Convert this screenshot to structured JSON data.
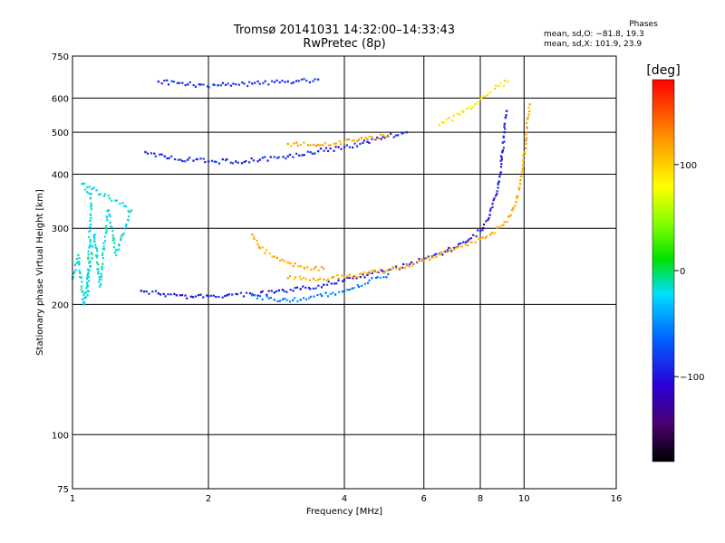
{
  "header": {
    "title_line1": "Tromsø 20141031 14:32:00–14:33:43",
    "title_line2": "RwPretec (8p)",
    "phase_title": "Phases",
    "phase_o": "mean, sd,O: −81.8, 19.3",
    "phase_x": "mean, sd,X: 101.9, 23.9"
  },
  "chart_data": {
    "type": "scatter",
    "title": "Tromsø 20141031 14:32:00–14:33:43",
    "subtitle": "RwPretec (8p)",
    "xlabel": "Frequency [MHz]",
    "ylabel": "Stationary phase Virtual Height [km]",
    "x_scale": "log",
    "y_scale": "log",
    "xlim": [
      1,
      16
    ],
    "ylim": [
      75,
      750
    ],
    "x_ticks": [
      1,
      2,
      4,
      6,
      8,
      10,
      16
    ],
    "x_tick_labels": [
      "1",
      "2",
      "4",
      "6",
      "8",
      "10",
      "16"
    ],
    "y_ticks": [
      75,
      100,
      200,
      300,
      400,
      500,
      600,
      750
    ],
    "y_tick_labels": [
      "75",
      "100",
      "200",
      "300",
      "400",
      "500",
      "600",
      "750"
    ],
    "grid": true,
    "colorbar": {
      "label": "[deg]",
      "range": [
        -180,
        180
      ],
      "ticks": [
        -100,
        0,
        100
      ],
      "tick_labels": [
        "−100",
        "0",
        "100"
      ]
    },
    "series": [
      {
        "points": [
          [
            1.42,
            215
          ],
          [
            1.55,
            212
          ],
          [
            1.7,
            210
          ],
          [
            1.85,
            208
          ],
          [
            2.0,
            209
          ],
          [
            2.2,
            210
          ],
          [
            2.5,
            211
          ],
          [
            2.8,
            213
          ],
          [
            3.2,
            217
          ],
          [
            3.6,
            222
          ],
          [
            4.0,
            228
          ],
          [
            4.5,
            234
          ],
          [
            5.0,
            240
          ],
          [
            5.5,
            247
          ],
          [
            6.0,
            255
          ],
          [
            6.5,
            262
          ],
          [
            7.0,
            270
          ],
          [
            7.5,
            280
          ],
          [
            8.0,
            296
          ],
          [
            8.4,
            322
          ],
          [
            8.7,
            360
          ],
          [
            8.85,
            400
          ],
          [
            8.95,
            450
          ],
          [
            9.05,
            500
          ],
          [
            9.15,
            560
          ]
        ],
        "phase": -95
      },
      {
        "points": [
          [
            3.0,
            230
          ],
          [
            3.5,
            228
          ],
          [
            4.0,
            232
          ],
          [
            4.5,
            236
          ],
          [
            5.0,
            240
          ],
          [
            5.5,
            246
          ],
          [
            6.0,
            253
          ],
          [
            6.5,
            261
          ],
          [
            7.0,
            268
          ],
          [
            7.5,
            274
          ],
          [
            8.0,
            283
          ],
          [
            8.5,
            293
          ],
          [
            9.0,
            305
          ],
          [
            9.3,
            320
          ],
          [
            9.6,
            345
          ],
          [
            9.8,
            380
          ],
          [
            9.95,
            420
          ],
          [
            10.1,
            480
          ],
          [
            10.2,
            540
          ],
          [
            10.3,
            580
          ]
        ],
        "phase": 115
      },
      {
        "points": [
          [
            1.45,
            450
          ],
          [
            1.6,
            440
          ],
          [
            1.8,
            432
          ],
          [
            2.0,
            428
          ],
          [
            2.3,
            428
          ],
          [
            2.6,
            432
          ],
          [
            3.0,
            440
          ],
          [
            3.5,
            452
          ],
          [
            4.0,
            462
          ],
          [
            4.5,
            475
          ],
          [
            5.0,
            490
          ],
          [
            5.5,
            500
          ]
        ],
        "phase": -90
      },
      {
        "points": [
          [
            3.0,
            470
          ],
          [
            3.5,
            468
          ],
          [
            4.0,
            474
          ],
          [
            4.5,
            482
          ],
          [
            5.0,
            492
          ]
        ],
        "phase": 120
      },
      {
        "points": [
          [
            1.55,
            655
          ],
          [
            1.8,
            645
          ],
          [
            2.1,
            642
          ],
          [
            2.5,
            648
          ],
          [
            3.0,
            655
          ],
          [
            3.5,
            662
          ]
        ],
        "phase": -85
      },
      {
        "points": [
          [
            6.5,
            520
          ],
          [
            7.2,
            550
          ],
          [
            7.8,
            580
          ],
          [
            8.3,
            610
          ],
          [
            8.8,
            640
          ],
          [
            9.2,
            655
          ]
        ],
        "phase": 90
      },
      {
        "points": [
          [
            1.0,
            230
          ],
          [
            1.03,
            260
          ],
          [
            1.06,
            200
          ],
          [
            1.09,
            240
          ],
          [
            1.12,
            290
          ],
          [
            1.15,
            220
          ],
          [
            1.2,
            330
          ],
          [
            1.25,
            260
          ],
          [
            1.35,
            330
          ],
          [
            1.05,
            380
          ],
          [
            1.1,
            360
          ],
          [
            1.08,
            210
          ]
        ],
        "phase": -20
      },
      {
        "points": [
          [
            2.5,
            290
          ],
          [
            2.6,
            270
          ],
          [
            2.8,
            258
          ],
          [
            3.0,
            250
          ],
          [
            3.2,
            245
          ],
          [
            3.6,
            242
          ]
        ],
        "phase": 115
      },
      {
        "points": [
          [
            2.5,
            210
          ],
          [
            2.8,
            205
          ],
          [
            3.2,
            205
          ],
          [
            4.0,
            215
          ],
          [
            5.0,
            235
          ]
        ],
        "phase": -55
      }
    ]
  }
}
